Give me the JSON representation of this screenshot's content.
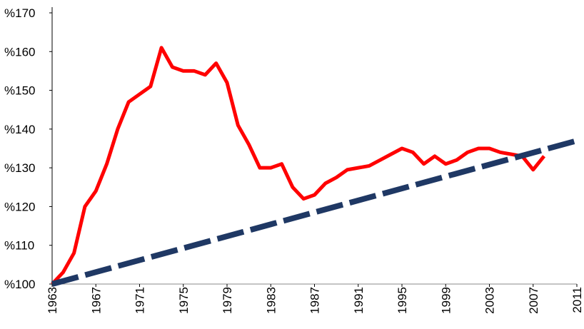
{
  "chart_data": {
    "type": "line",
    "xlim": [
      1963,
      2011
    ],
    "xticks": [
      1963,
      1967,
      1971,
      1975,
      1979,
      1983,
      1987,
      1991,
      1995,
      1999,
      2003,
      2007,
      2011
    ],
    "ylim": [
      100,
      170
    ],
    "yticks": [
      {
        "value": 100,
        "label": "%100"
      },
      {
        "value": 110,
        "label": "%110"
      },
      {
        "value": 120,
        "label": "%120"
      },
      {
        "value": 130,
        "label": "%130"
      },
      {
        "value": 140,
        "label": "%140"
      },
      {
        "value": 150,
        "label": "%150"
      },
      {
        "value": 160,
        "label": "%160"
      },
      {
        "value": 170,
        "label": "%170"
      }
    ],
    "series": [
      {
        "color": "#ff0000",
        "dash": false,
        "x": [
          1963,
          1964,
          1965,
          1966,
          1967,
          1968,
          1969,
          1970,
          1971,
          1972,
          1973,
          1974,
          1975,
          1976,
          1977,
          1978,
          1979,
          1980,
          1981,
          1982,
          1983,
          1984,
          1985,
          1986,
          1987,
          1988,
          1989,
          1990,
          1991,
          1992,
          1993,
          1994,
          1995,
          1996,
          1997,
          1998,
          1999,
          2000,
          2001,
          2002,
          2003,
          2004,
          2005,
          2006,
          2007,
          2008
        ],
        "values": [
          100,
          103,
          108,
          120,
          124,
          131,
          140,
          147,
          149,
          151,
          161,
          156,
          155,
          155,
          154,
          157,
          152,
          141,
          136,
          130,
          130,
          131,
          125,
          122,
          123,
          126,
          127.5,
          129.5,
          130,
          130.5,
          132,
          133.5,
          135,
          134,
          131,
          133,
          131,
          132,
          134,
          135,
          135,
          134,
          133.5,
          133,
          129.5,
          133
        ]
      },
      {
        "color": "#1f3864",
        "dash": true,
        "x": [
          1963,
          2011
        ],
        "values": [
          100,
          137
        ]
      }
    ]
  }
}
